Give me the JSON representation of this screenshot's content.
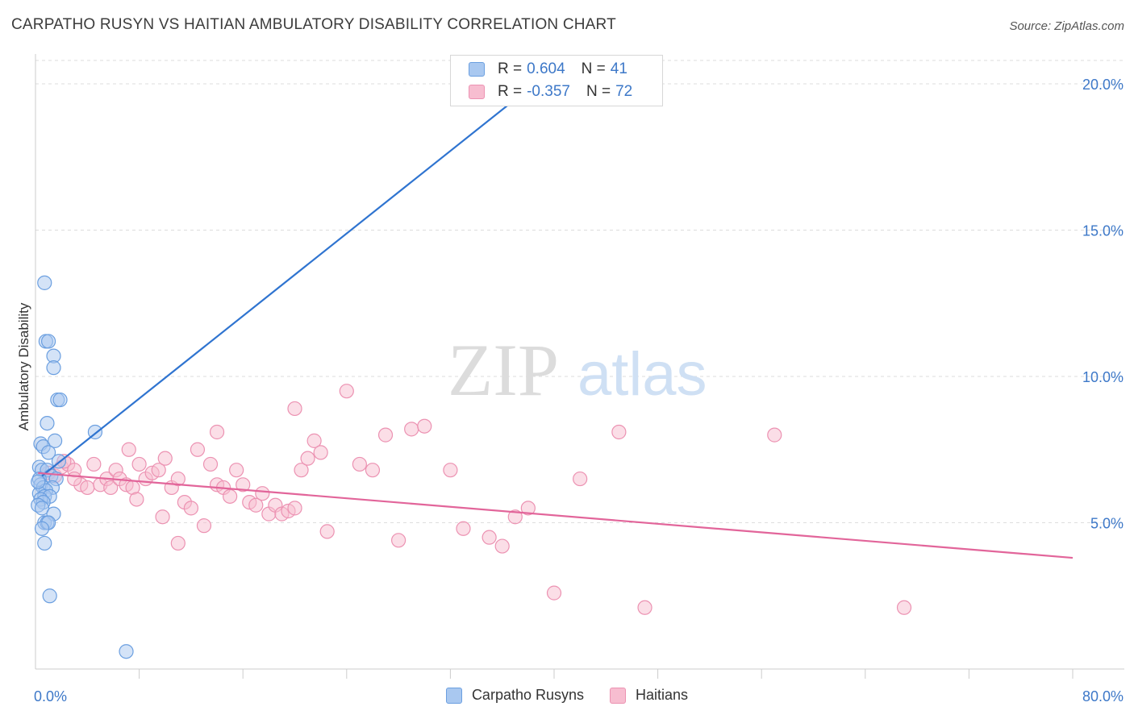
{
  "title": "CARPATHO RUSYN VS HAITIAN AMBULATORY DISABILITY CORRELATION CHART",
  "source": "Source: ZipAtlas.com",
  "watermark": {
    "zip": "ZIP",
    "atlas": "atlas"
  },
  "legend": {
    "rows": [
      {
        "r_label": "R =",
        "r_value": "0.604",
        "n_label": "N =",
        "n_value": "41"
      },
      {
        "r_label": "R =",
        "r_value": "-0.357",
        "n_label": "N =",
        "n_value": "72"
      }
    ]
  },
  "colors": {
    "blue_fill": "#a9c8f0",
    "blue_stroke": "#6b9fe0",
    "blue_line": "#2f74d0",
    "pink_fill": "#f7bdd0",
    "pink_stroke": "#ec92b2",
    "pink_line": "#e2659a",
    "tick_label": "#3d78c8",
    "grid": "#dddddd"
  },
  "chart_data": {
    "type": "scatter",
    "title": "CARPATHO RUSYN VS HAITIAN AMBULATORY DISABILITY CORRELATION CHART",
    "xlabel": "",
    "ylabel": "Ambulatory Disability",
    "xlim": [
      0,
      80
    ],
    "ylim": [
      0,
      20.8
    ],
    "x_tick_labels": [
      "0.0%",
      "80.0%"
    ],
    "y_ticks": [
      5,
      10,
      15,
      20
    ],
    "y_tick_labels": [
      "5.0%",
      "10.0%",
      "15.0%",
      "20.0%"
    ],
    "grid": "horizontal dashed",
    "legend_placement": "bottom",
    "series": [
      {
        "name": "Carpatho Rusyns",
        "color": "#a9c8f0",
        "trend": {
          "x0": 0.5,
          "y0": 6.6,
          "x1": 38.5,
          "y1": 20.0
        },
        "points": [
          [
            0.7,
            13.2
          ],
          [
            0.8,
            11.2
          ],
          [
            1.0,
            11.2
          ],
          [
            1.4,
            10.7
          ],
          [
            1.4,
            10.3
          ],
          [
            1.7,
            9.2
          ],
          [
            1.9,
            9.2
          ],
          [
            0.9,
            8.4
          ],
          [
            4.6,
            8.1
          ],
          [
            0.4,
            7.7
          ],
          [
            0.6,
            7.6
          ],
          [
            1.5,
            7.8
          ],
          [
            1.0,
            7.4
          ],
          [
            1.8,
            7.1
          ],
          [
            0.3,
            6.9
          ],
          [
            0.5,
            6.8
          ],
          [
            0.9,
            6.8
          ],
          [
            1.2,
            6.6
          ],
          [
            0.3,
            6.5
          ],
          [
            1.6,
            6.5
          ],
          [
            0.4,
            6.3
          ],
          [
            0.6,
            6.2
          ],
          [
            1.3,
            6.2
          ],
          [
            0.8,
            6.1
          ],
          [
            0.3,
            6.0
          ],
          [
            0.7,
            5.9
          ],
          [
            1.1,
            5.9
          ],
          [
            0.4,
            5.8
          ],
          [
            0.6,
            5.7
          ],
          [
            0.2,
            5.6
          ],
          [
            0.5,
            5.5
          ],
          [
            1.4,
            5.3
          ],
          [
            0.7,
            5.0
          ],
          [
            0.9,
            5.0
          ],
          [
            1.0,
            5.0
          ],
          [
            0.5,
            4.8
          ],
          [
            0.7,
            4.3
          ],
          [
            1.1,
            2.5
          ],
          [
            7.0,
            0.6
          ],
          [
            37.5,
            19.6
          ],
          [
            0.2,
            6.4
          ]
        ]
      },
      {
        "name": "Haitians",
        "color": "#f7bdd0",
        "trend": {
          "x0": 0.2,
          "y0": 6.7,
          "x1": 80.0,
          "y1": 3.8
        },
        "points": [
          [
            1.0,
            6.7
          ],
          [
            1.5,
            6.6
          ],
          [
            2.0,
            6.9
          ],
          [
            2.5,
            7.0
          ],
          [
            3.0,
            6.8
          ],
          [
            3.5,
            6.3
          ],
          [
            4.0,
            6.2
          ],
          [
            4.5,
            7.0
          ],
          [
            5.0,
            6.3
          ],
          [
            5.5,
            6.5
          ],
          [
            5.8,
            6.2
          ],
          [
            6.2,
            6.8
          ],
          [
            6.5,
            6.5
          ],
          [
            7.0,
            6.3
          ],
          [
            7.5,
            6.2
          ],
          [
            7.8,
            5.8
          ],
          [
            8.0,
            7.0
          ],
          [
            8.5,
            6.5
          ],
          [
            9.0,
            6.7
          ],
          [
            9.5,
            6.8
          ],
          [
            10.0,
            7.2
          ],
          [
            10.5,
            6.2
          ],
          [
            11.0,
            6.5
          ],
          [
            11.5,
            5.7
          ],
          [
            12.0,
            5.5
          ],
          [
            12.5,
            7.5
          ],
          [
            13.0,
            4.9
          ],
          [
            13.5,
            7.0
          ],
          [
            14.0,
            6.3
          ],
          [
            14.5,
            6.2
          ],
          [
            15.0,
            5.9
          ],
          [
            15.5,
            6.8
          ],
          [
            16.0,
            6.3
          ],
          [
            16.5,
            5.7
          ],
          [
            17.0,
            5.6
          ],
          [
            17.5,
            6.0
          ],
          [
            18.0,
            5.3
          ],
          [
            18.5,
            5.6
          ],
          [
            19.0,
            5.3
          ],
          [
            19.5,
            5.4
          ],
          [
            20.0,
            5.5
          ],
          [
            20.5,
            6.8
          ],
          [
            21.0,
            7.2
          ],
          [
            21.5,
            7.8
          ],
          [
            22.0,
            7.4
          ],
          [
            22.5,
            4.7
          ],
          [
            24.0,
            9.5
          ],
          [
            25.0,
            7.0
          ],
          [
            26.0,
            6.8
          ],
          [
            27.0,
            8.0
          ],
          [
            28.0,
            4.4
          ],
          [
            29.0,
            8.2
          ],
          [
            30.0,
            8.3
          ],
          [
            32.0,
            6.8
          ],
          [
            33.0,
            4.8
          ],
          [
            35.0,
            4.5
          ],
          [
            36.0,
            4.2
          ],
          [
            37.0,
            5.2
          ],
          [
            38.0,
            5.5
          ],
          [
            40.0,
            2.6
          ],
          [
            42.0,
            6.5
          ],
          [
            45.0,
            8.1
          ],
          [
            47.0,
            2.1
          ],
          [
            67.0,
            2.1
          ],
          [
            57.0,
            8.0
          ],
          [
            9.8,
            5.2
          ],
          [
            7.2,
            7.5
          ],
          [
            3.0,
            6.5
          ],
          [
            11.0,
            4.3
          ],
          [
            20.0,
            8.9
          ],
          [
            14.0,
            8.1
          ],
          [
            2.2,
            7.1
          ]
        ]
      }
    ]
  }
}
